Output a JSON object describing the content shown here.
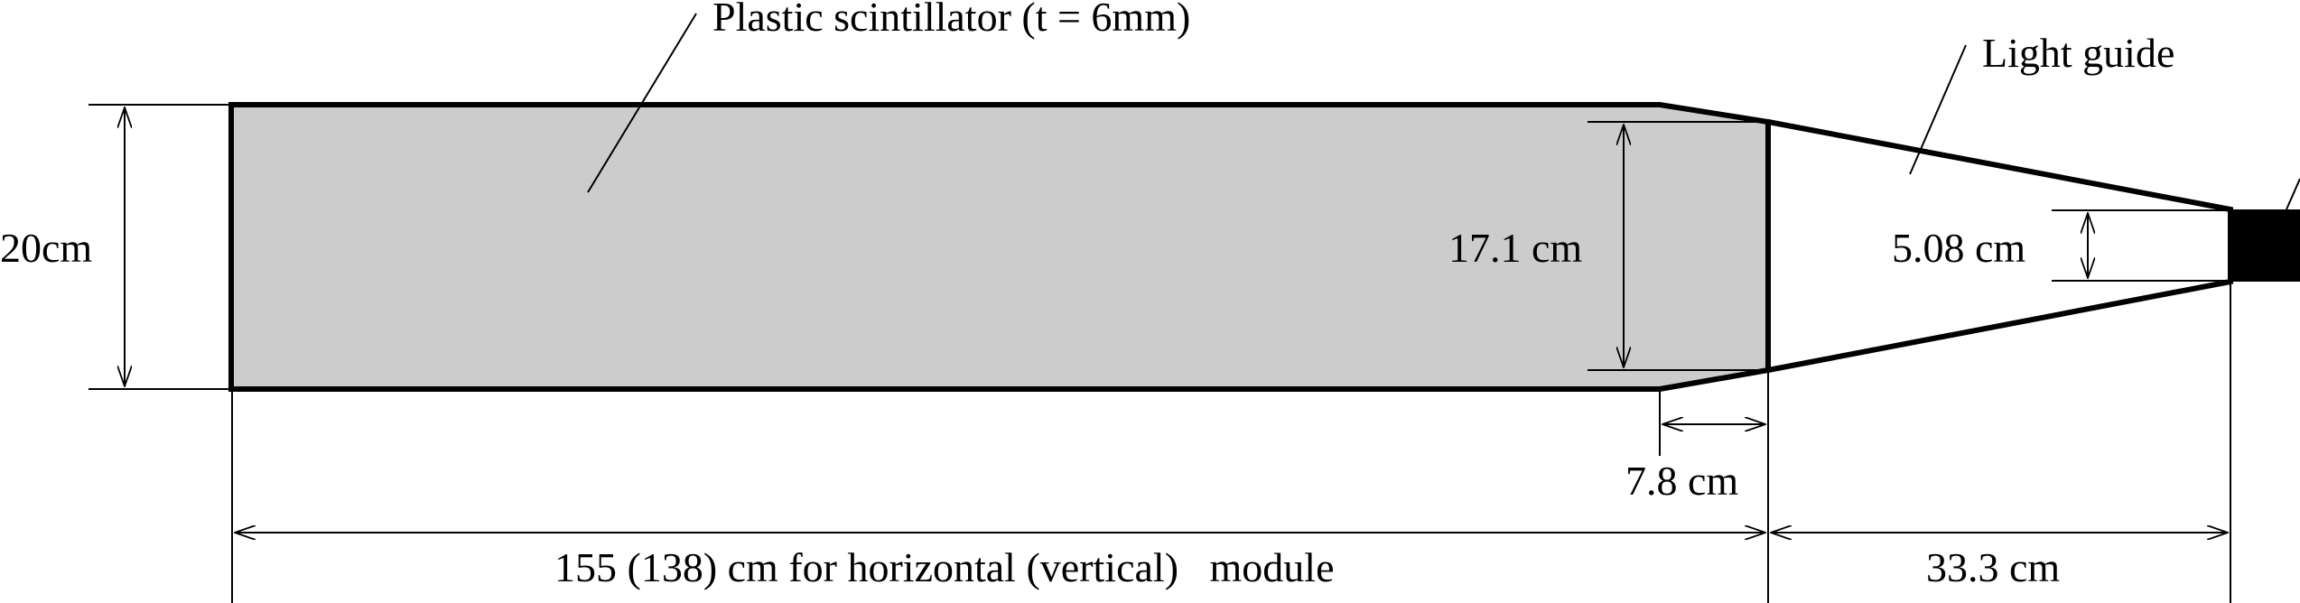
{
  "labels": {
    "scintillator": "Plastic scintillator (t = 6mm)",
    "light_guide": "Light guide",
    "height_outer": "20cm",
    "height_inner": "17.1 cm",
    "pmt_width": "5.08 cm",
    "chamfer": "7.8 cm",
    "module_length": "155 (138) cm for horizontal (vertical)   module",
    "guide_length": "33.3 cm"
  },
  "colors": {
    "scintillator_fill": "#cccccc",
    "outline": "#000000",
    "pmt_fill": "#000000"
  }
}
